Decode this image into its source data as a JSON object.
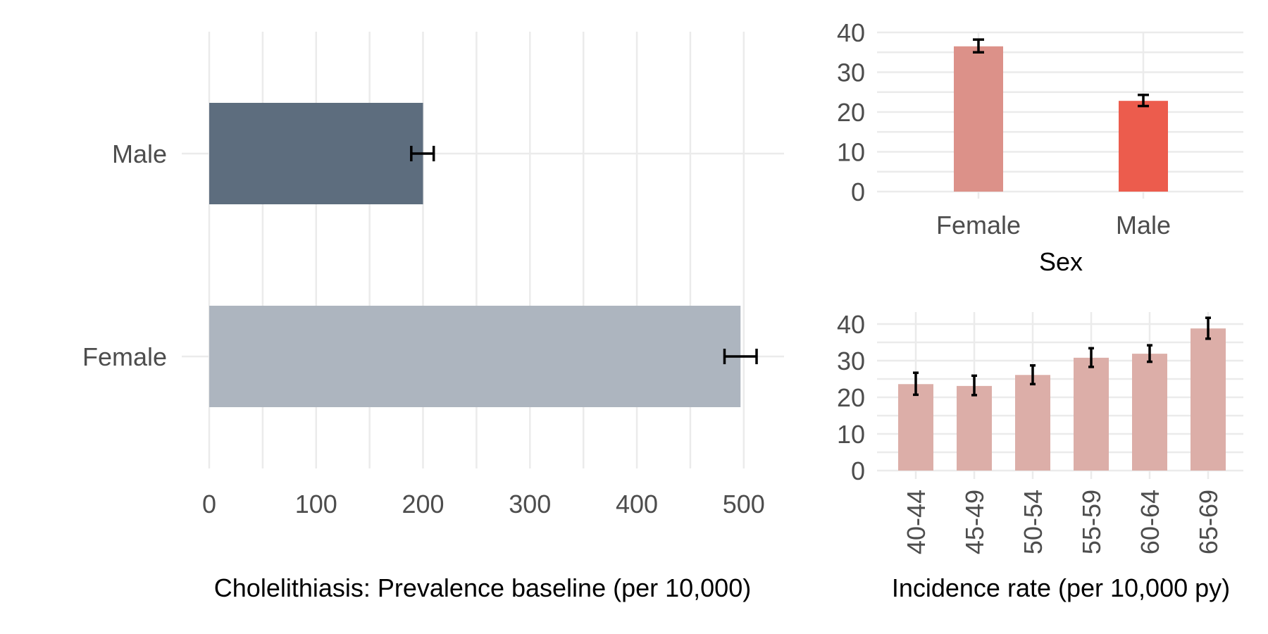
{
  "chart_data": [
    {
      "type": "bar",
      "orientation": "horizontal",
      "xlabel": "Cholelithiasis: Prevalence baseline (per 10,000)",
      "ylabel": "",
      "categories": [
        "Male",
        "Female"
      ],
      "values": [
        200,
        497
      ],
      "error_low": [
        189,
        482
      ],
      "error_high": [
        210,
        512
      ],
      "colors": [
        "#5d6d7e",
        "#adb5bf"
      ],
      "xlim": [
        0,
        535
      ],
      "x_ticks": [
        "0",
        "100",
        "200",
        "300",
        "400",
        "500"
      ],
      "grid": true
    },
    {
      "type": "bar",
      "xlabel": "Sex",
      "ylabel": "",
      "categories": [
        "Female",
        "Male"
      ],
      "values": [
        36.5,
        22.8
      ],
      "error_low": [
        35.0,
        21.5
      ],
      "error_high": [
        38.2,
        24.3
      ],
      "colors": [
        "#dc9189",
        "#ec5c4d"
      ],
      "ylim": [
        0,
        40
      ],
      "y_ticks": [
        "0",
        "10",
        "20",
        "30",
        "40"
      ],
      "grid": true
    },
    {
      "type": "bar",
      "xlabel": "Incidence rate (per 10,000 py)",
      "ylabel": "",
      "categories": [
        "40-44",
        "45-49",
        "50-54",
        "55-59",
        "60-64",
        "65-69"
      ],
      "values": [
        23.6,
        23.1,
        26.1,
        30.8,
        31.9,
        38.8
      ],
      "error_low": [
        20.7,
        20.6,
        23.6,
        28.3,
        29.7,
        36.0
      ],
      "error_high": [
        26.7,
        25.9,
        28.7,
        33.4,
        34.2,
        41.7
      ],
      "colors": [
        "#dcaea8"
      ],
      "ylim": [
        0,
        40
      ],
      "y_ticks": [
        "0",
        "10",
        "20",
        "30",
        "40"
      ],
      "grid": true
    }
  ]
}
